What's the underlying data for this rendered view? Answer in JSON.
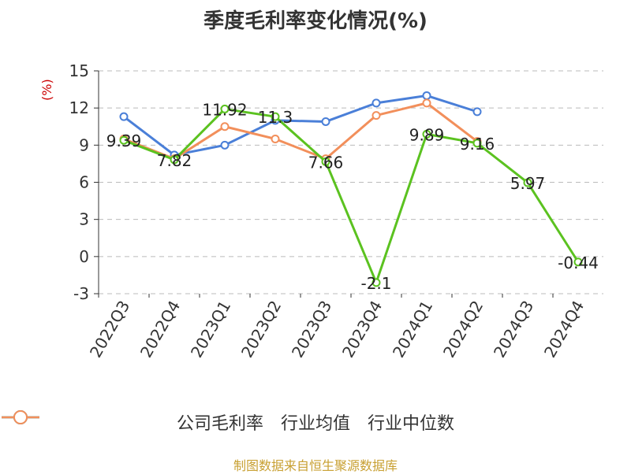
{
  "chart_data": {
    "type": "line",
    "title": "季度毛利率变化情况(%)",
    "ylabel": "(%)",
    "ylim": [
      -3,
      15
    ],
    "yticks": [
      -3,
      0,
      3,
      6,
      9,
      12,
      15
    ],
    "categories": [
      "2022Q3",
      "2022Q4",
      "2023Q1",
      "2023Q2",
      "2023Q3",
      "2023Q4",
      "2024Q1",
      "2024Q2",
      "2024Q3",
      "2024Q4"
    ],
    "grid": true,
    "legend_position": "bottom",
    "series": [
      {
        "name": "公司毛利率",
        "color": "#5bc220",
        "values": [
          9.39,
          7.82,
          11.92,
          11.3,
          7.66,
          -2.1,
          9.89,
          9.16,
          5.97,
          -0.44
        ],
        "labels": [
          "9.39",
          "7.82",
          "11.92",
          "11.3",
          "7.66",
          "-2.1",
          "9.89",
          "9.16",
          "5.97",
          "-0.44"
        ]
      },
      {
        "name": "行业均值",
        "color": "#4a7fd8",
        "values": [
          11.3,
          8.2,
          9.0,
          11.0,
          10.9,
          12.4,
          13.0,
          11.7,
          null,
          null
        ]
      },
      {
        "name": "行业中位数",
        "color": "#f28f5b",
        "values": [
          9.5,
          7.9,
          10.5,
          9.5,
          7.9,
          11.4,
          12.4,
          9.3,
          null,
          null
        ]
      }
    ],
    "source": "制图数据来自恒生聚源数据库"
  }
}
